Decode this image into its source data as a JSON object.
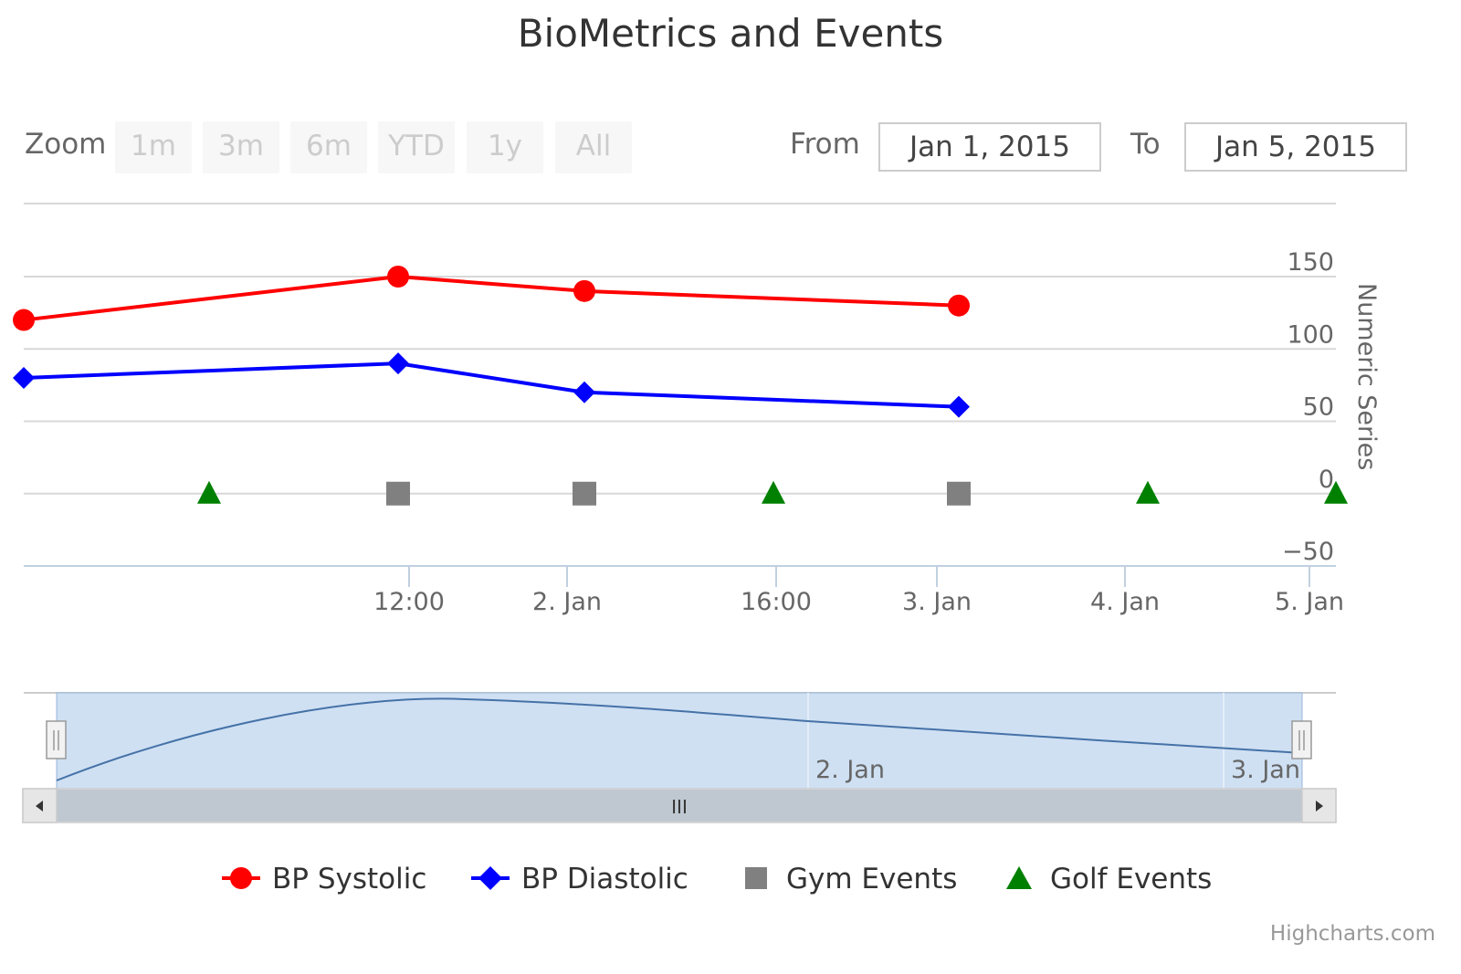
{
  "chart_data": {
    "type": "line",
    "title": "BioMetrics and Events",
    "ylabel": "Numeric Series",
    "ylim": [
      -50,
      150
    ],
    "yticks": [
      150,
      100,
      50,
      0,
      -50
    ],
    "xticks": [
      "12:00",
      "2. Jan",
      "16:00",
      "3. Jan",
      "4. Jan",
      "5. Jan"
    ],
    "series": [
      {
        "name": "BP Systolic",
        "color": "#ff0000",
        "marker": "circle",
        "points": [
          {
            "x": 0,
            "y": 120
          },
          {
            "x": 2,
            "y": 150
          },
          {
            "x": 3,
            "y": 140
          },
          {
            "x": 5,
            "y": 130
          }
        ]
      },
      {
        "name": "BP Diastolic",
        "color": "#0000ff",
        "marker": "diamond",
        "points": [
          {
            "x": 0,
            "y": 80
          },
          {
            "x": 2,
            "y": 90
          },
          {
            "x": 3,
            "y": 70
          },
          {
            "x": 5,
            "y": 60
          }
        ]
      },
      {
        "name": "Gym Events",
        "color": "#808080",
        "marker": "square",
        "points": [
          {
            "x": 2,
            "y": 0
          },
          {
            "x": 3,
            "y": 0
          },
          {
            "x": 5,
            "y": 0
          }
        ]
      },
      {
        "name": "Golf Events",
        "color": "#008000",
        "marker": "triangle",
        "points": [
          {
            "x": 1,
            "y": 0
          },
          {
            "x": 4,
            "y": 0
          },
          {
            "x": 6,
            "y": 0
          },
          {
            "x": 7,
            "y": 0
          }
        ]
      }
    ],
    "grid": true,
    "legend": "bottom"
  },
  "zoom": {
    "label": "Zoom",
    "buttons": [
      "1m",
      "3m",
      "6m",
      "YTD",
      "1y",
      "All"
    ]
  },
  "range": {
    "from_label": "From",
    "from_value": "Jan 1, 2015",
    "to_label": "To",
    "to_value": "Jan 5, 2015"
  },
  "navigator": {
    "labels": [
      "2. Jan",
      "3. Jan"
    ],
    "handle_glyph": "III",
    "left_arrow": "arrow-left-icon",
    "right_arrow": "arrow-right-icon"
  },
  "credits": "Highcharts.com"
}
